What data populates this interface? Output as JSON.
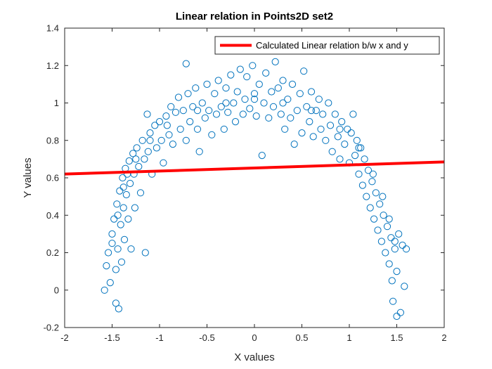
{
  "chart_data": {
    "type": "scatter",
    "title": "Linear relation in Points2D set2",
    "xlabel": "X values",
    "ylabel": "Y values",
    "xlim": [
      -2,
      2
    ],
    "ylim": [
      -0.2,
      1.4
    ],
    "xticks": [
      -2,
      -1.5,
      -1,
      -0.5,
      0,
      0.5,
      1,
      1.5,
      2
    ],
    "yticks": [
      -0.2,
      0,
      0.2,
      0.4,
      0.6,
      0.8,
      1,
      1.2,
      1.4
    ],
    "xtick_labels": [
      "-2",
      "-1.5",
      "-1",
      "-0.5",
      "0",
      "0.5",
      "1",
      "1.5",
      "2"
    ],
    "ytick_labels": [
      "-0.2",
      "0",
      "0.2",
      "0.4",
      "0.6",
      "0.8",
      "1",
      "1.2",
      "1.4"
    ],
    "grid": false,
    "legend_position": "top-right",
    "series": [
      {
        "kind": "scatter",
        "color": "#0072BD",
        "marker": "circle-open",
        "points": [
          [
            -1.58,
            0.0
          ],
          [
            -1.56,
            0.13
          ],
          [
            -1.54,
            0.2
          ],
          [
            -1.52,
            0.04
          ],
          [
            -1.5,
            0.3
          ],
          [
            -1.48,
            0.38
          ],
          [
            -1.46,
            0.11
          ],
          [
            -1.46,
            -0.07
          ],
          [
            -1.45,
            0.46
          ],
          [
            -1.44,
            0.22
          ],
          [
            -1.43,
            -0.1
          ],
          [
            -1.42,
            0.53
          ],
          [
            -1.41,
            0.35
          ],
          [
            -1.4,
            0.15
          ],
          [
            -1.39,
            0.6
          ],
          [
            -1.38,
            0.44
          ],
          [
            -1.37,
            0.27
          ],
          [
            -1.36,
            0.65
          ],
          [
            -1.35,
            0.51
          ],
          [
            -1.33,
            0.38
          ],
          [
            -1.32,
            0.69
          ],
          [
            -1.31,
            0.57
          ],
          [
            -1.3,
            0.22
          ],
          [
            -1.28,
            0.73
          ],
          [
            -1.27,
            0.62
          ],
          [
            -1.26,
            0.44
          ],
          [
            -1.24,
            0.76
          ],
          [
            -1.22,
            0.66
          ],
          [
            -1.2,
            0.52
          ],
          [
            -1.18,
            0.8
          ],
          [
            -1.16,
            0.7
          ],
          [
            -1.15,
            0.2
          ],
          [
            -1.13,
            0.94
          ],
          [
            -1.12,
            0.74
          ],
          [
            -1.1,
            0.84
          ],
          [
            -1.08,
            0.62
          ],
          [
            -1.05,
            0.88
          ],
          [
            -1.03,
            0.76
          ],
          [
            -1.0,
            0.9
          ],
          [
            -0.98,
            0.8
          ],
          [
            -0.96,
            0.68
          ],
          [
            -0.93,
            0.93
          ],
          [
            -0.9,
            0.83
          ],
          [
            -0.88,
            0.98
          ],
          [
            -0.86,
            0.78
          ],
          [
            -0.83,
            0.95
          ],
          [
            -0.8,
            1.03
          ],
          [
            -0.78,
            0.86
          ],
          [
            -0.75,
            0.96
          ],
          [
            -0.72,
            1.21
          ],
          [
            -0.72,
            0.8
          ],
          [
            -0.7,
            1.05
          ],
          [
            -0.68,
            0.9
          ],
          [
            -0.65,
            0.98
          ],
          [
            -0.62,
            1.08
          ],
          [
            -0.6,
            0.86
          ],
          [
            -0.58,
            0.74
          ],
          [
            -0.55,
            1.0
          ],
          [
            -0.52,
            0.92
          ],
          [
            -0.5,
            1.1
          ],
          [
            -0.48,
            0.96
          ],
          [
            -0.45,
            0.83
          ],
          [
            -0.42,
            1.05
          ],
          [
            -0.4,
            0.94
          ],
          [
            -0.38,
            1.12
          ],
          [
            -0.35,
            0.98
          ],
          [
            -0.32,
            0.86
          ],
          [
            -0.3,
            1.08
          ],
          [
            -0.28,
            0.95
          ],
          [
            -0.25,
            1.15
          ],
          [
            -0.22,
            1.0
          ],
          [
            -0.2,
            0.9
          ],
          [
            -0.18,
            1.06
          ],
          [
            -0.15,
            1.18
          ],
          [
            -0.12,
            0.94
          ],
          [
            -0.1,
            1.02
          ],
          [
            -0.08,
            1.14
          ],
          [
            -0.05,
            0.97
          ],
          [
            -0.02,
            1.2
          ],
          [
            0.0,
            1.05
          ],
          [
            0.02,
            0.93
          ],
          [
            0.05,
            1.1
          ],
          [
            0.08,
            0.72
          ],
          [
            0.1,
            1.0
          ],
          [
            0.12,
            1.16
          ],
          [
            0.15,
            0.92
          ],
          [
            0.18,
            1.06
          ],
          [
            0.2,
            0.98
          ],
          [
            0.22,
            1.22
          ],
          [
            0.25,
            1.08
          ],
          [
            0.28,
            0.94
          ],
          [
            0.3,
            1.12
          ],
          [
            0.32,
            0.86
          ],
          [
            0.35,
            1.02
          ],
          [
            0.38,
            0.92
          ],
          [
            0.4,
            1.1
          ],
          [
            0.42,
            0.78
          ],
          [
            0.45,
            0.96
          ],
          [
            0.48,
            1.05
          ],
          [
            0.5,
            0.84
          ],
          [
            0.52,
            1.17
          ],
          [
            0.55,
            0.98
          ],
          [
            0.58,
            0.9
          ],
          [
            0.6,
            1.06
          ],
          [
            0.62,
            0.82
          ],
          [
            0.65,
            0.96
          ],
          [
            0.68,
            1.02
          ],
          [
            0.7,
            0.86
          ],
          [
            0.72,
            0.94
          ],
          [
            0.75,
            0.8
          ],
          [
            0.78,
            1.0
          ],
          [
            0.8,
            0.88
          ],
          [
            0.82,
            0.74
          ],
          [
            0.85,
            0.94
          ],
          [
            0.88,
            0.82
          ],
          [
            0.9,
            0.7
          ],
          [
            0.92,
            0.9
          ],
          [
            0.95,
            0.78
          ],
          [
            0.98,
            0.86
          ],
          [
            1.0,
            0.68
          ],
          [
            1.02,
            0.84
          ],
          [
            1.04,
            0.94
          ],
          [
            1.06,
            0.72
          ],
          [
            1.08,
            0.8
          ],
          [
            1.1,
            0.62
          ],
          [
            1.12,
            0.76
          ],
          [
            1.14,
            0.56
          ],
          [
            1.16,
            0.7
          ],
          [
            1.18,
            0.5
          ],
          [
            1.2,
            0.64
          ],
          [
            1.22,
            0.44
          ],
          [
            1.24,
            0.58
          ],
          [
            1.26,
            0.38
          ],
          [
            1.28,
            0.52
          ],
          [
            1.3,
            0.32
          ],
          [
            1.32,
            0.46
          ],
          [
            1.34,
            0.26
          ],
          [
            1.36,
            0.4
          ],
          [
            1.38,
            0.2
          ],
          [
            1.4,
            0.34
          ],
          [
            1.42,
            0.14
          ],
          [
            1.44,
            0.28
          ],
          [
            1.45,
            0.05
          ],
          [
            1.46,
            -0.06
          ],
          [
            1.48,
            0.22
          ],
          [
            1.5,
            -0.14
          ],
          [
            1.5,
            0.1
          ],
          [
            1.52,
            0.3
          ],
          [
            1.54,
            -0.12
          ],
          [
            1.56,
            0.24
          ],
          [
            1.58,
            0.02
          ],
          [
            1.6,
            0.22
          ],
          [
            -1.5,
            0.25
          ],
          [
            -1.44,
            0.4
          ],
          [
            -1.38,
            0.55
          ],
          [
            -1.34,
            0.62
          ],
          [
            -1.25,
            0.7
          ],
          [
            -1.1,
            0.8
          ],
          [
            -0.92,
            0.88
          ],
          [
            -0.6,
            0.96
          ],
          [
            -0.3,
            1.0
          ],
          [
            0.0,
            1.02
          ],
          [
            0.3,
            1.0
          ],
          [
            0.6,
            0.96
          ],
          [
            0.9,
            0.86
          ],
          [
            1.1,
            0.76
          ],
          [
            1.25,
            0.62
          ],
          [
            1.35,
            0.5
          ],
          [
            1.42,
            0.38
          ],
          [
            1.48,
            0.26
          ]
        ]
      },
      {
        "kind": "line",
        "name": "Calculated Linear relation b/w x and y",
        "color": "#FF0000",
        "x": [
          -2,
          2
        ],
        "y": [
          0.62,
          0.685
        ]
      }
    ]
  }
}
